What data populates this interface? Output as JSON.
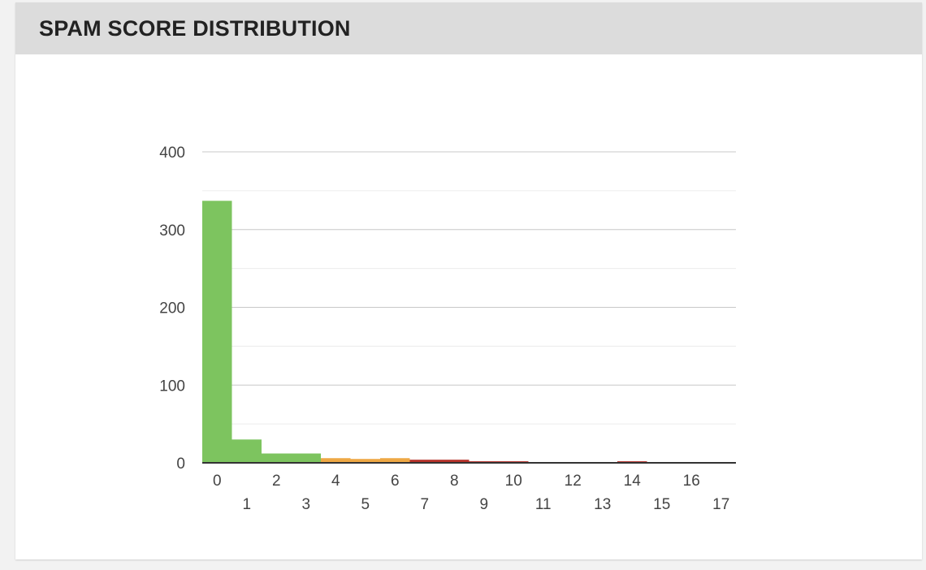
{
  "panel": {
    "title": "SPAM SCORE DISTRIBUTION"
  },
  "chart_data": {
    "type": "bar",
    "title": "SPAM SCORE DISTRIBUTION",
    "xlabel": "",
    "ylabel": "",
    "categories": [
      "0",
      "1",
      "2",
      "3",
      "4",
      "5",
      "6",
      "7",
      "8",
      "9",
      "10",
      "11",
      "12",
      "13",
      "14",
      "15",
      "16",
      "17"
    ],
    "values": [
      337,
      30,
      12,
      12,
      6,
      5,
      6,
      4,
      4,
      2,
      2,
      1,
      1,
      1,
      2,
      1,
      1,
      1
    ],
    "bar_colors": [
      "#7dc45f",
      "#7dc45f",
      "#7dc45f",
      "#7dc45f",
      "#eea844",
      "#eea844",
      "#eea844",
      "#b5322a",
      "#b5322a",
      "#b5322a",
      "#b5322a",
      "#b5322a",
      "#b5322a",
      "#b5322a",
      "#b5322a",
      "#b5322a",
      "#b5322a",
      "#b5322a"
    ],
    "ylim": [
      0,
      400
    ],
    "y_ticks": [
      0,
      100,
      200,
      300,
      400
    ],
    "grid": true,
    "legend": "none"
  }
}
